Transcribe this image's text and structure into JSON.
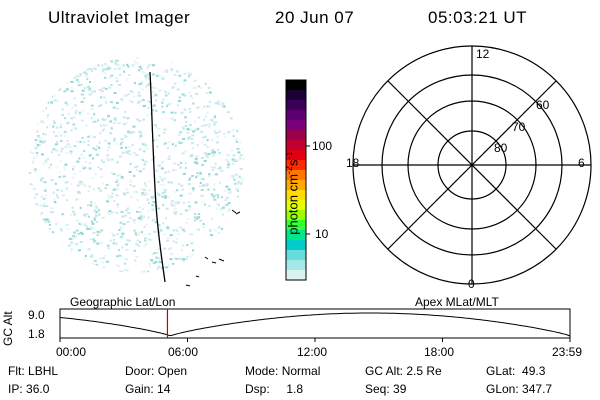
{
  "header": {
    "title": "Ultraviolet Imager",
    "date": "20 Jun 07",
    "time": "05:03:21 UT"
  },
  "panels": {
    "left_label": "Geographic Lat/Lon",
    "right_label": "Apex MLat/MLT"
  },
  "colorbar": {
    "unit_label": "photon cm",
    "unit_exp1": "-2",
    "unit_mid": "s",
    "unit_exp2": "-1",
    "ticks": [
      "100",
      "10"
    ],
    "colors": [
      "#000000",
      "#1a0033",
      "#3a0057",
      "#5c0070",
      "#7a007a",
      "#99004d",
      "#c00030",
      "#e00010",
      "#ff2a00",
      "#ff7700",
      "#ffaa00",
      "#ffdd00",
      "#e6ff00",
      "#99ff00",
      "#33ff33",
      "#00e68a",
      "#00cccc",
      "#66dddd",
      "#a6e8e8",
      "#d9f3f3"
    ]
  },
  "polar": {
    "mlt_labels": {
      "top": "12",
      "bottom": "0",
      "left": "18",
      "right": "6"
    },
    "lat_labels": [
      "80",
      "70",
      "60"
    ]
  },
  "altitude_plot": {
    "ylabel": "GC Alt",
    "yticks": [
      "9.0",
      "1.8"
    ],
    "xticks": [
      "00:00",
      "06:00",
      "12:00",
      "18:00",
      "23:59"
    ],
    "current_time_hours": 5.056
  },
  "info": {
    "row1": [
      {
        "label": "Flt:",
        "value": "LBHL"
      },
      {
        "label": "Door:",
        "value": "Open"
      },
      {
        "label": "Mode:",
        "value": "Normal"
      },
      {
        "label": "GC Alt:",
        "value": "2.5 Re"
      },
      {
        "label": "GLat:",
        "value": "49.3"
      }
    ],
    "row2": [
      {
        "label": "IP:",
        "value": "36.0"
      },
      {
        "label": "Gain:",
        "value": "14"
      },
      {
        "label": "Dsp:",
        "value": "1.8"
      },
      {
        "label": "Seq:",
        "value": "39"
      },
      {
        "label": "GLon:",
        "value": "347.7"
      }
    ]
  }
}
